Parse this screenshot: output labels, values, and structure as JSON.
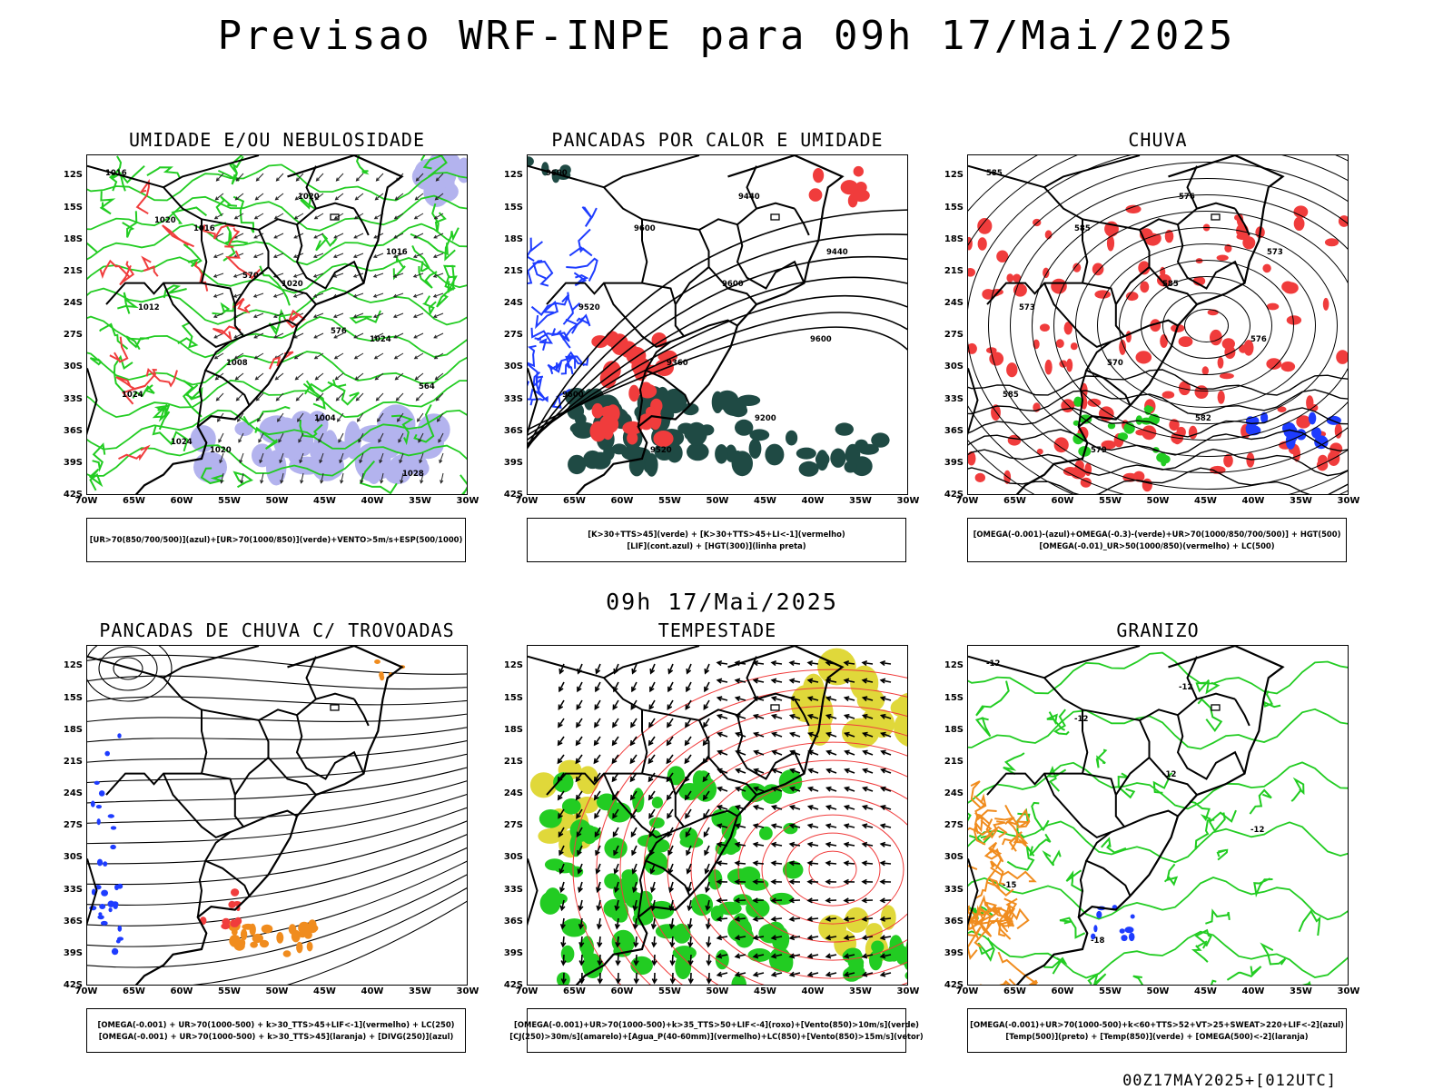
{
  "main_title": "Previsao WRF-INPE  para 09h 17/Mai/2025",
  "mid_title": "09h 17/Mai/2025",
  "footer": "00Z17MAY2025+[012UTC]",
  "axes": {
    "lat_labels": [
      "12S",
      "15S",
      "18S",
      "21S",
      "24S",
      "27S",
      "30S",
      "33S",
      "36S",
      "39S",
      "42S"
    ],
    "lon_labels": [
      "70W",
      "65W",
      "60W",
      "55W",
      "50W",
      "45W",
      "40W",
      "35W",
      "30W"
    ]
  },
  "colors": {
    "humid_blue": "#b3b3ee",
    "green": "#22cc22",
    "red": "#f03c3c",
    "dark_teal": "#1f4a44",
    "blue": "#1e3cff",
    "orange": "#f08c1e",
    "yellow": "#e0d83a"
  },
  "panels": [
    {
      "id": "umidade",
      "title": "UMIDADE E/OU NEBULOSIDADE",
      "legend": [
        "[UR>70(850/700/500)](azul)+[UR>70(1000/850)](verde)+VENTO>5m/s+ESP(500/1000)"
      ],
      "contour_labels": [
        "1016",
        "1016",
        "1020",
        "1024",
        "1024",
        "1020",
        "1020",
        "1016",
        "1012",
        "1008",
        "1004",
        "1028",
        "1020",
        "570",
        "576",
        "564",
        "1024"
      ]
    },
    {
      "id": "pancadas_calor",
      "title": "PANCADAS POR CALOR E UMIDADE",
      "legend": [
        "[K>30+TTS>45](verde) + [K>30+TTS>45+LI<-1](vermelho)",
        "[LIF](cont.azul) + [HGT(300)](linha preta)"
      ],
      "contour_labels": [
        "9600",
        "9600",
        "9600",
        "9600",
        "9600",
        "9520",
        "9440",
        "9440",
        "9520",
        "9360",
        "9200"
      ]
    },
    {
      "id": "chuva",
      "title": "CHUVA",
      "legend": [
        "[OMEGA(-0.001)-(azul)+OMEGA(-0.3)-(verde)+UR>70(1000/850/700/500)] + HGT(500)",
        "[OMEGA(-0.01)_UR>50(1000/850)(vermelho) + LC(500)"
      ],
      "contour_labels": [
        "585",
        "585",
        "585",
        "576",
        "585",
        "579",
        "576",
        "573",
        "573",
        "570",
        "582"
      ]
    },
    {
      "id": "pancadas_trovoadas",
      "title": "PANCADAS DE CHUVA C/ TROVOADAS",
      "legend": [
        "[OMEGA(-0.001) + UR>70(1000-500) + k>30_TTS>45+LIF<-1](vermelho) + LC(250)",
        "[OMEGA(-0.001) + UR>70(1000-500) + k>30_TTS>45](laranja) + [DIVG(250)](azul)"
      ],
      "contour_labels": []
    },
    {
      "id": "tempestade",
      "title": "TEMPESTADE",
      "legend": [
        "[OMEGA(-0.001)+UR>70(1000-500)+k>35_TTS>50+LIF<-4](roxo)+[Vento(850)>10m/s](verde)",
        "[CJ(250)>30m/s](amarelo)+[Agua_P(40-60mm)](vermelho)+LC(850)+[Vento(850)>15m/s](vetor)"
      ],
      "contour_labels": []
    },
    {
      "id": "granizo",
      "title": "GRANIZO",
      "legend": [
        "[OMEGA(-0.001)+UR>70(1000-500)+k<60+TTS>52+VT>25+SWEAT>220+LIF<-2](azul)",
        "[Temp(500)](preto) + [Temp(850)](verde) + [OMEGA(500)<-2](laranja)"
      ],
      "contour_labels": [
        "-12",
        "-12",
        "-12",
        "-12",
        "-15",
        "-18",
        "-12"
      ]
    }
  ]
}
